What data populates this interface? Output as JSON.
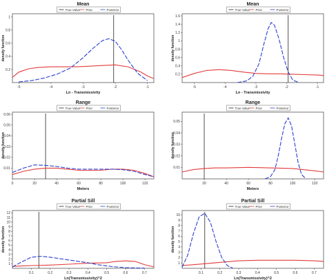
{
  "chart_data": [
    {
      "type": "line",
      "title": "Mean",
      "xlabel": "Ln - Transmissivity",
      "ylabel": "density function",
      "xlim": [
        -5.2,
        -0.8
      ],
      "ylim": [
        0,
        1.05
      ],
      "xticks": [
        -5,
        -4,
        -3,
        -2,
        -1
      ],
      "yticks": [
        0.2,
        0.4,
        0.6,
        0.8,
        1
      ],
      "legend": [
        "True Value",
        "Prior",
        "Posterior"
      ],
      "true_value": -2.05,
      "series": [
        {
          "name": "Prior",
          "color": "#e23b3b",
          "x": [
            -5.2,
            -5.0,
            -4.7,
            -4.4,
            -4.0,
            -3.6,
            -3.2,
            -2.8,
            -2.4,
            -2.0,
            -1.6,
            -1.2,
            -1.0,
            -0.8
          ],
          "y": [
            0.08,
            0.16,
            0.21,
            0.23,
            0.24,
            0.24,
            0.24,
            0.25,
            0.26,
            0.27,
            0.24,
            0.16,
            0.1,
            0.06
          ]
        },
        {
          "name": "Posterior",
          "color": "#2a3fd0",
          "x": [
            -5.0,
            -4.6,
            -4.2,
            -3.8,
            -3.4,
            -3.0,
            -2.7,
            -2.4,
            -2.2,
            -2.0,
            -1.8,
            -1.6,
            -1.3,
            -1.0
          ],
          "y": [
            0.01,
            0.03,
            0.07,
            0.13,
            0.22,
            0.38,
            0.52,
            0.64,
            0.67,
            0.63,
            0.5,
            0.34,
            0.14,
            0.03
          ]
        }
      ]
    },
    {
      "type": "line",
      "title": "Mean",
      "xlabel": "Ln - Transmissivity",
      "ylabel": "density function",
      "xlim": [
        -5.4,
        -0.8
      ],
      "ylim": [
        0,
        1.65
      ],
      "xticks": [
        -5,
        -4,
        -3,
        -2,
        -1
      ],
      "yticks": [
        0.2,
        0.4,
        0.6,
        0.8,
        1,
        1.2,
        1.4,
        1.6
      ],
      "legend": [
        "True Value",
        "Prior",
        "Posterior"
      ],
      "true_value": -1.95,
      "series": [
        {
          "name": "Prior",
          "color": "#e23b3b",
          "x": [
            -5.4,
            -5.0,
            -4.6,
            -4.2,
            -3.8,
            -3.4,
            -3.0,
            -2.6,
            -2.2,
            -1.8,
            -1.4,
            -1.0,
            -0.8
          ],
          "y": [
            0.12,
            0.22,
            0.29,
            0.31,
            0.29,
            0.25,
            0.22,
            0.21,
            0.21,
            0.2,
            0.19,
            0.18,
            0.17
          ]
        },
        {
          "name": "Posterior",
          "color": "#2a3fd0",
          "x": [
            -3.6,
            -3.3,
            -3.1,
            -2.9,
            -2.75,
            -2.6,
            -2.5,
            -2.4,
            -2.25,
            -2.1,
            -1.95,
            -1.8,
            -1.6
          ],
          "y": [
            0.0,
            0.04,
            0.15,
            0.45,
            0.9,
            1.3,
            1.44,
            1.38,
            1.05,
            0.6,
            0.25,
            0.06,
            0.0
          ]
        }
      ]
    },
    {
      "type": "line",
      "title": "Range",
      "xlabel": "Meters",
      "ylabel": "density function",
      "xlim": [
        0,
        128
      ],
      "ylim": [
        0,
        0.062
      ],
      "xticks": [
        0,
        20,
        40,
        60,
        80,
        100,
        120
      ],
      "yticks": [
        0.01,
        0.02,
        0.03,
        0.04,
        0.05,
        0.06
      ],
      "legend": [
        "True Value",
        "Prior",
        "Posterior"
      ],
      "true_value": 30,
      "series": [
        {
          "name": "Prior",
          "color": "#e23b3b",
          "x": [
            0,
            10,
            20,
            30,
            40,
            50,
            60,
            70,
            80,
            90,
            100,
            110,
            120,
            128
          ],
          "y": [
            0.004,
            0.007,
            0.009,
            0.01,
            0.01,
            0.009,
            0.008,
            0.008,
            0.008,
            0.009,
            0.009,
            0.008,
            0.005,
            0.002
          ]
        },
        {
          "name": "Posterior",
          "color": "#2a3fd0",
          "x": [
            0,
            10,
            20,
            30,
            40,
            50,
            60,
            70,
            80,
            90,
            100,
            110,
            120,
            128
          ],
          "y": [
            0.006,
            0.01,
            0.013,
            0.0125,
            0.0115,
            0.01,
            0.009,
            0.009,
            0.009,
            0.009,
            0.0085,
            0.007,
            0.004,
            0.002
          ]
        }
      ]
    },
    {
      "type": "line",
      "title": "Range",
      "xlabel": "Meters",
      "ylabel": "density function",
      "xlim": [
        0,
        128
      ],
      "ylim": [
        0,
        0.058
      ],
      "xticks": [
        20,
        40,
        60,
        80,
        100,
        120
      ],
      "yticks": [
        0.01,
        0.02,
        0.03,
        0.04,
        0.05
      ],
      "legend": [
        "True Value",
        "Prior",
        "Posterior"
      ],
      "true_value": 20,
      "series": [
        {
          "name": "Prior",
          "color": "#e23b3b",
          "x": [
            0,
            10,
            20,
            30,
            40,
            60,
            80,
            100,
            120,
            128
          ],
          "y": [
            0.006,
            0.008,
            0.009,
            0.0095,
            0.0095,
            0.01,
            0.0095,
            0.009,
            0.007,
            0.006
          ]
        },
        {
          "name": "Posterior",
          "color": "#2a3fd0",
          "x": [
            75,
            80,
            84,
            87,
            90,
            93,
            96,
            99,
            102,
            105,
            108,
            112
          ],
          "y": [
            0.0,
            0.002,
            0.008,
            0.02,
            0.035,
            0.048,
            0.053,
            0.046,
            0.03,
            0.014,
            0.004,
            0.0
          ]
        }
      ]
    },
    {
      "type": "line",
      "title": "Partial Sill",
      "xlabel": "Ln(Transmissivity)^2",
      "ylabel": "density function",
      "xlim": [
        0,
        0.75
      ],
      "ylim": [
        0,
        12.5
      ],
      "xticks": [
        0.1,
        0.2,
        0.3,
        0.4,
        0.5,
        0.6,
        0.7
      ],
      "yticks": [
        1,
        2,
        3,
        4,
        5,
        6,
        7,
        8,
        9,
        10,
        11,
        12
      ],
      "legend": [
        "True Value",
        "Prior",
        "Posterior"
      ],
      "true_value": 0.14,
      "series": [
        {
          "name": "Prior",
          "color": "#e23b3b",
          "x": [
            0.0,
            0.05,
            0.1,
            0.2,
            0.3,
            0.4,
            0.5,
            0.55,
            0.6,
            0.65,
            0.7,
            0.75
          ],
          "y": [
            0.4,
            0.5,
            0.6,
            0.7,
            0.9,
            1.1,
            1.2,
            1.5,
            1.6,
            1.5,
            0.8,
            0.3
          ]
        },
        {
          "name": "Posterior",
          "color": "#2a3fd0",
          "x": [
            0.0,
            0.05,
            0.1,
            0.15,
            0.2,
            0.25,
            0.3,
            0.35,
            0.4,
            0.45,
            0.5,
            0.55,
            0.6,
            0.65,
            0.7
          ],
          "y": [
            0.3,
            1.4,
            2.4,
            2.6,
            2.4,
            2.1,
            1.8,
            1.5,
            1.2,
            0.8,
            0.5,
            0.3,
            0.15,
            0.08,
            0.04
          ]
        }
      ]
    },
    {
      "type": "line",
      "title": "Partial Sill",
      "xlabel": "Ln(Transmissivity)^2",
      "ylabel": "density function",
      "xlim": [
        0,
        0.75
      ],
      "ylim": [
        0,
        10.8
      ],
      "xticks": [
        0.1,
        0.2,
        0.3,
        0.4,
        0.5,
        0.6,
        0.7
      ],
      "yticks": [
        1,
        2,
        3,
        4,
        5,
        6,
        7,
        8,
        9,
        10
      ],
      "legend": [
        "True Value",
        "Prior",
        "Posterior"
      ],
      "true_value": 0.12,
      "series": [
        {
          "name": "Prior",
          "color": "#e23b3b",
          "x": [
            0.0,
            0.1,
            0.2,
            0.3,
            0.4,
            0.5,
            0.6,
            0.7,
            0.75
          ],
          "y": [
            0.5,
            0.8,
            1.1,
            1.4,
            1.5,
            1.5,
            1.5,
            1.4,
            1.3
          ]
        },
        {
          "name": "Posterior",
          "color": "#2a3fd0",
          "x": [
            0.0,
            0.03,
            0.06,
            0.09,
            0.12,
            0.15,
            0.18,
            0.21,
            0.24,
            0.27
          ],
          "y": [
            0.2,
            2.5,
            6.5,
            9.6,
            10.3,
            8.6,
            5.0,
            2.0,
            0.5,
            0.0
          ]
        }
      ]
    }
  ]
}
